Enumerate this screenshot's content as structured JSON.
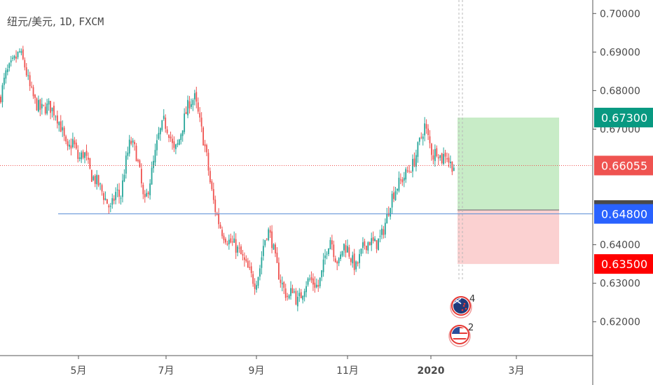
{
  "header": {
    "symbol": "纽元/美元",
    "interval": "1D",
    "exchange": "FXCM"
  },
  "colors": {
    "up": "#26a69a",
    "down": "#ef5350",
    "profit_zone": "#c8ecc7",
    "loss_zone": "#fbd1d1",
    "horizontal_line": "#5b8fd6",
    "last_price_line": "#ef5350"
  },
  "events": [
    {
      "name": "new-zealand-flag-event",
      "count": "4"
    },
    {
      "name": "us-flag-event",
      "count": "2"
    }
  ],
  "chart_data": {
    "type": "candlestick",
    "price_axis_ticks": [
      "0.70000",
      "0.69000",
      "0.68000",
      "0.67000",
      "0.64000",
      "0.63000",
      "0.62000"
    ],
    "price_labels": [
      {
        "text": "0.67300",
        "value": 0.673,
        "role": "take-profit",
        "color": "#089981"
      },
      {
        "text": "0.66055",
        "value": 0.66055,
        "role": "last-price",
        "color": "#ef5350"
      },
      {
        "text": "0.64900",
        "value": 0.649,
        "role": "entry",
        "color": "#4a4a4a"
      },
      {
        "text": "0.64800",
        "value": 0.648,
        "role": "horizontal-line",
        "color": "#2962ff"
      },
      {
        "text": "0.63500",
        "value": 0.635,
        "role": "stop-loss",
        "color": "#ff0000"
      }
    ],
    "time_axis": [
      {
        "text": "5月",
        "bold": false
      },
      {
        "text": "7月",
        "bold": false
      },
      {
        "text": "9月",
        "bold": false
      },
      {
        "text": "11月",
        "bold": false
      },
      {
        "text": "2020",
        "bold": true
      },
      {
        "text": "3月",
        "bold": false
      }
    ],
    "price_range": [
      0.614,
      0.702
    ],
    "horizontal_line": 0.648,
    "long_position": {
      "entry": 0.649,
      "target": 0.673,
      "stop": 0.635
    },
    "close_path": [
      [
        0,
        0.678
      ],
      [
        8,
        0.684
      ],
      [
        18,
        0.687
      ],
      [
        28,
        0.69
      ],
      [
        36,
        0.686
      ],
      [
        42,
        0.681
      ],
      [
        50,
        0.677
      ],
      [
        58,
        0.675
      ],
      [
        70,
        0.676
      ],
      [
        80,
        0.674
      ],
      [
        88,
        0.67
      ],
      [
        96,
        0.664
      ],
      [
        104,
        0.667
      ],
      [
        112,
        0.662
      ],
      [
        120,
        0.664
      ],
      [
        130,
        0.658
      ],
      [
        140,
        0.656
      ],
      [
        150,
        0.652
      ],
      [
        158,
        0.649
      ],
      [
        166,
        0.654
      ],
      [
        172,
        0.652
      ],
      [
        178,
        0.66
      ],
      [
        186,
        0.667
      ],
      [
        194,
        0.664
      ],
      [
        200,
        0.658
      ],
      [
        206,
        0.65
      ],
      [
        212,
        0.655
      ],
      [
        218,
        0.66
      ],
      [
        226,
        0.668
      ],
      [
        234,
        0.672
      ],
      [
        242,
        0.669
      ],
      [
        248,
        0.664
      ],
      [
        254,
        0.666
      ],
      [
        262,
        0.672
      ],
      [
        270,
        0.677
      ],
      [
        278,
        0.678
      ],
      [
        286,
        0.671
      ],
      [
        294,
        0.664
      ],
      [
        300,
        0.656
      ],
      [
        306,
        0.65
      ],
      [
        312,
        0.646
      ],
      [
        318,
        0.643
      ],
      [
        326,
        0.641
      ],
      [
        334,
        0.64
      ],
      [
        342,
        0.638
      ],
      [
        350,
        0.635
      ],
      [
        358,
        0.632
      ],
      [
        364,
        0.63
      ],
      [
        370,
        0.633
      ],
      [
        376,
        0.64
      ],
      [
        382,
        0.644
      ],
      [
        388,
        0.641
      ],
      [
        394,
        0.635
      ],
      [
        400,
        0.631
      ],
      [
        406,
        0.628
      ],
      [
        412,
        0.626
      ],
      [
        418,
        0.629
      ],
      [
        424,
        0.625
      ],
      [
        430,
        0.627
      ],
      [
        436,
        0.63
      ],
      [
        442,
        0.631
      ],
      [
        448,
        0.63
      ],
      [
        454,
        0.629
      ],
      [
        460,
        0.633
      ],
      [
        466,
        0.639
      ],
      [
        472,
        0.642
      ],
      [
        478,
        0.637
      ],
      [
        484,
        0.635
      ],
      [
        490,
        0.64
      ],
      [
        496,
        0.639
      ],
      [
        502,
        0.636
      ],
      [
        508,
        0.634
      ],
      [
        514,
        0.637
      ],
      [
        520,
        0.64
      ],
      [
        528,
        0.641
      ],
      [
        536,
        0.64
      ],
      [
        544,
        0.642
      ],
      [
        552,
        0.647
      ],
      [
        558,
        0.652
      ],
      [
        566,
        0.655
      ],
      [
        574,
        0.657
      ],
      [
        582,
        0.659
      ],
      [
        590,
        0.661
      ],
      [
        598,
        0.666
      ],
      [
        606,
        0.671
      ],
      [
        612,
        0.667
      ],
      [
        618,
        0.663
      ],
      [
        624,
        0.665
      ],
      [
        630,
        0.662
      ],
      [
        636,
        0.664
      ],
      [
        642,
        0.661
      ],
      [
        648,
        0.6605
      ]
    ]
  }
}
